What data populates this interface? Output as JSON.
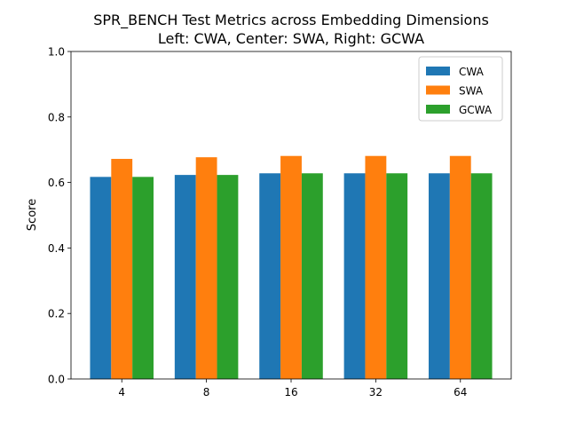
{
  "chart_data": {
    "type": "bar",
    "title_line1": "SPR_BENCH Test Metrics across Embedding Dimensions",
    "title_line2": "Left: CWA, Center: SWA, Right: GCWA",
    "xlabel": "",
    "ylabel": "Score",
    "ylim": [
      0,
      1.0
    ],
    "yticks": [
      "0.0",
      "0.2",
      "0.4",
      "0.6",
      "0.8",
      "1.0"
    ],
    "categories": [
      "4",
      "8",
      "16",
      "32",
      "64"
    ],
    "series": [
      {
        "name": "CWA",
        "color": "#1f77b4",
        "values": [
          0.617,
          0.623,
          0.628,
          0.628,
          0.628
        ]
      },
      {
        "name": "SWA",
        "color": "#ff7f0e",
        "values": [
          0.672,
          0.677,
          0.681,
          0.681,
          0.681
        ]
      },
      {
        "name": "GCWA",
        "color": "#2ca02c",
        "values": [
          0.617,
          0.623,
          0.628,
          0.628,
          0.628
        ]
      }
    ],
    "legend_position": "top-right",
    "grid": false
  }
}
